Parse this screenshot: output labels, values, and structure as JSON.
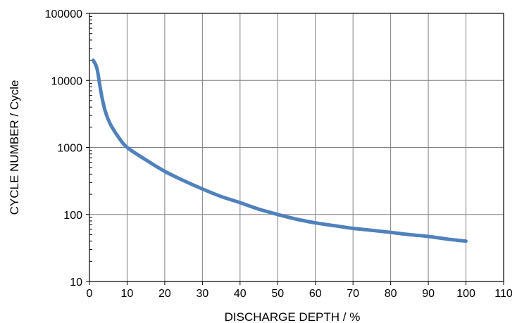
{
  "chart_data": {
    "type": "line",
    "xlabel": "DISCHARGE DEPTH / %",
    "ylabel": "CYCLE NUMBER / Cycle",
    "xlim": [
      0,
      110
    ],
    "ylim": [
      10,
      100000
    ],
    "y_scale": "log",
    "grid": true,
    "x_ticks": [
      0,
      10,
      20,
      30,
      40,
      50,
      60,
      70,
      80,
      90,
      100,
      110
    ],
    "x_tick_labels": [
      "0",
      "10",
      "20",
      "30",
      "40",
      "50",
      "60",
      "70",
      "80",
      "90",
      "100",
      "110"
    ],
    "y_ticks": [
      10,
      100,
      1000,
      10000,
      100000
    ],
    "y_tick_labels": [
      "10",
      "100",
      "1000",
      "10000",
      "100000"
    ],
    "series_color": "#4f81bd",
    "series": [
      {
        "x": [
          1,
          2,
          3,
          4,
          5,
          6,
          8,
          10,
          15,
          20,
          25,
          30,
          35,
          40,
          45,
          50,
          55,
          60,
          65,
          70,
          75,
          80,
          85,
          90,
          95,
          100
        ],
        "y": [
          20000,
          15000,
          7000,
          3800,
          2600,
          2000,
          1350,
          1000,
          650,
          440,
          320,
          240,
          185,
          150,
          120,
          100,
          85,
          75,
          68,
          62,
          58,
          54,
          50,
          47,
          43,
          40
        ]
      }
    ]
  }
}
